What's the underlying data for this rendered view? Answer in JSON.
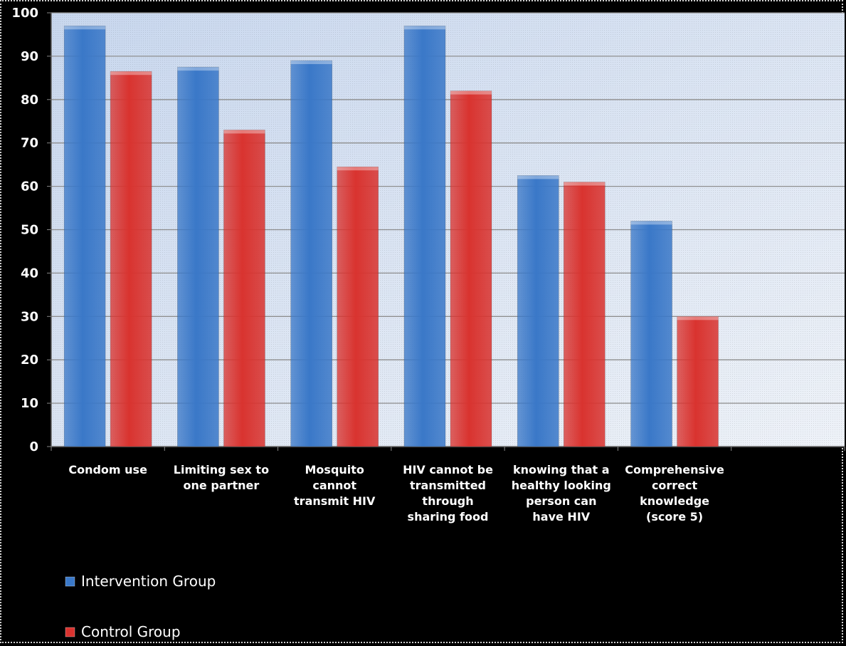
{
  "chart_data": {
    "type": "bar",
    "title": "",
    "xlabel": "",
    "ylabel": "",
    "ylim": [
      0,
      100
    ],
    "yticks": [
      0,
      10,
      20,
      30,
      40,
      50,
      60,
      70,
      80,
      90,
      100
    ],
    "grid": true,
    "legend_position": "bottom-left",
    "categories": [
      [
        "Condom use"
      ],
      [
        "Limiting sex to",
        "one partner"
      ],
      [
        "Mosquito",
        "cannot",
        "transmit HIV"
      ],
      [
        "HIV cannot be",
        "transmitted",
        "through",
        "sharing food"
      ],
      [
        "knowing that a",
        "healthy looking",
        "person can",
        "have HIV"
      ],
      [
        "Comprehensive",
        "correct",
        "knowledge",
        "(score 5)"
      ]
    ],
    "series": [
      {
        "name": "Intervention Group",
        "color": "#3a78c8",
        "values": [
          97,
          87.5,
          89,
          97,
          62.5,
          52
        ]
      },
      {
        "name": "Control Group",
        "color": "#d9332f",
        "values": [
          86.5,
          73,
          64.5,
          82,
          61,
          30
        ]
      }
    ]
  }
}
